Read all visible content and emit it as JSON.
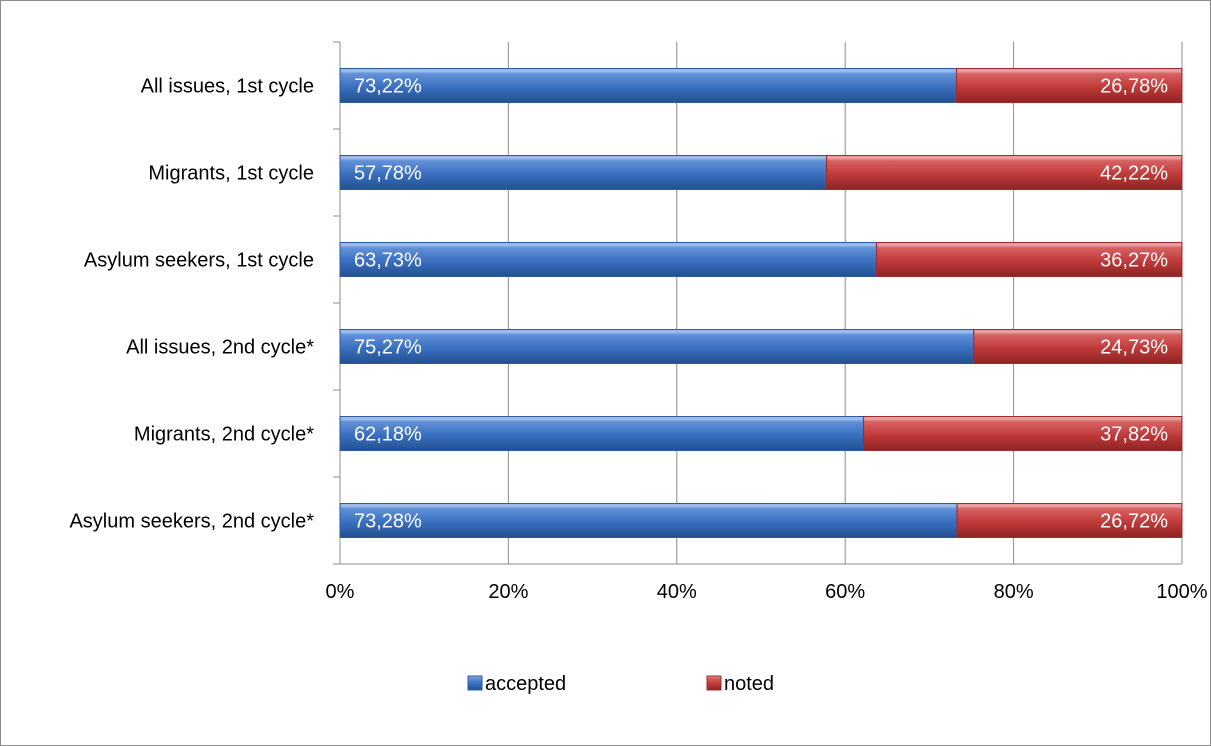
{
  "chart_data": {
    "type": "bar",
    "orientation": "horizontal",
    "stacked": true,
    "percent_stacked": true,
    "categories": [
      "All issues, 1st cycle",
      "Migrants, 1st cycle",
      "Asylum seekers, 1st cycle",
      "All issues, 2nd cycle*",
      "Migrants, 2nd cycle*",
      "Asylum seekers, 2nd cycle*"
    ],
    "series": [
      {
        "name": "accepted",
        "color": "#3a6fc0",
        "values": [
          73.22,
          57.78,
          63.73,
          75.27,
          62.18,
          73.28
        ],
        "labels": [
          "73,22%",
          "57,78%",
          "63,73%",
          "75,27%",
          "62,18%",
          "73,28%"
        ]
      },
      {
        "name": "noted",
        "color": "#c03a3a",
        "values": [
          26.78,
          42.22,
          36.27,
          24.73,
          37.82,
          26.72
        ],
        "labels": [
          "26,78%",
          "42,22%",
          "36,27%",
          "24,73%",
          "37,82%",
          "26,72%"
        ]
      }
    ],
    "xlim": [
      0,
      100
    ],
    "xticks": [
      "0%",
      "20%",
      "40%",
      "60%",
      "80%",
      "100%"
    ],
    "grid": true,
    "legend_position": "bottom"
  }
}
